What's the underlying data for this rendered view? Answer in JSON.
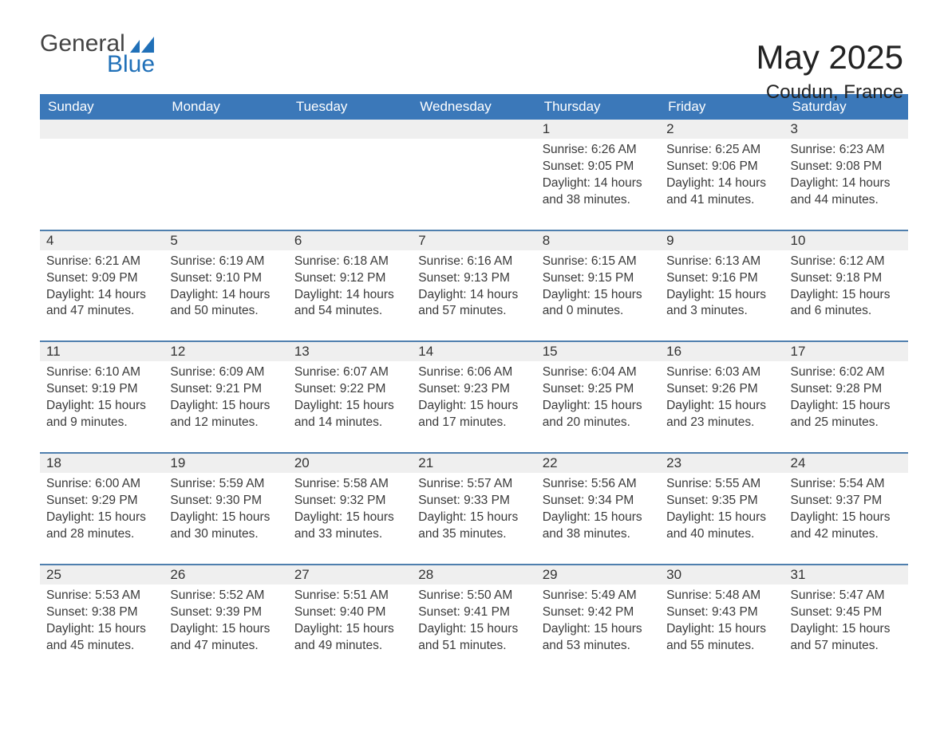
{
  "brand": {
    "word1": "General",
    "word2": "Blue",
    "logo_color": "#2070b8",
    "text_color": "#3a3a3a"
  },
  "title": {
    "main": "May 2025",
    "sub": "Coudun, France"
  },
  "colors": {
    "header_bg": "#3b78b9",
    "header_text": "#ffffff",
    "row_sep": "#efefef",
    "cell_border_top": "#4f7fae",
    "body_text": "#3a3a3a",
    "background": "#ffffff"
  },
  "columns": [
    "Sunday",
    "Monday",
    "Tuesday",
    "Wednesday",
    "Thursday",
    "Friday",
    "Saturday"
  ],
  "weeks": [
    {
      "days": [
        null,
        null,
        null,
        null,
        {
          "num": "1",
          "sunrise": "6:26 AM",
          "sunset": "9:05 PM",
          "daylight": "14 hours and 38 minutes."
        },
        {
          "num": "2",
          "sunrise": "6:25 AM",
          "sunset": "9:06 PM",
          "daylight": "14 hours and 41 minutes."
        },
        {
          "num": "3",
          "sunrise": "6:23 AM",
          "sunset": "9:08 PM",
          "daylight": "14 hours and 44 minutes."
        }
      ]
    },
    {
      "days": [
        {
          "num": "4",
          "sunrise": "6:21 AM",
          "sunset": "9:09 PM",
          "daylight": "14 hours and 47 minutes."
        },
        {
          "num": "5",
          "sunrise": "6:19 AM",
          "sunset": "9:10 PM",
          "daylight": "14 hours and 50 minutes."
        },
        {
          "num": "6",
          "sunrise": "6:18 AM",
          "sunset": "9:12 PM",
          "daylight": "14 hours and 54 minutes."
        },
        {
          "num": "7",
          "sunrise": "6:16 AM",
          "sunset": "9:13 PM",
          "daylight": "14 hours and 57 minutes."
        },
        {
          "num": "8",
          "sunrise": "6:15 AM",
          "sunset": "9:15 PM",
          "daylight": "15 hours and 0 minutes."
        },
        {
          "num": "9",
          "sunrise": "6:13 AM",
          "sunset": "9:16 PM",
          "daylight": "15 hours and 3 minutes."
        },
        {
          "num": "10",
          "sunrise": "6:12 AM",
          "sunset": "9:18 PM",
          "daylight": "15 hours and 6 minutes."
        }
      ]
    },
    {
      "days": [
        {
          "num": "11",
          "sunrise": "6:10 AM",
          "sunset": "9:19 PM",
          "daylight": "15 hours and 9 minutes."
        },
        {
          "num": "12",
          "sunrise": "6:09 AM",
          "sunset": "9:21 PM",
          "daylight": "15 hours and 12 minutes."
        },
        {
          "num": "13",
          "sunrise": "6:07 AM",
          "sunset": "9:22 PM",
          "daylight": "15 hours and 14 minutes."
        },
        {
          "num": "14",
          "sunrise": "6:06 AM",
          "sunset": "9:23 PM",
          "daylight": "15 hours and 17 minutes."
        },
        {
          "num": "15",
          "sunrise": "6:04 AM",
          "sunset": "9:25 PM",
          "daylight": "15 hours and 20 minutes."
        },
        {
          "num": "16",
          "sunrise": "6:03 AM",
          "sunset": "9:26 PM",
          "daylight": "15 hours and 23 minutes."
        },
        {
          "num": "17",
          "sunrise": "6:02 AM",
          "sunset": "9:28 PM",
          "daylight": "15 hours and 25 minutes."
        }
      ]
    },
    {
      "days": [
        {
          "num": "18",
          "sunrise": "6:00 AM",
          "sunset": "9:29 PM",
          "daylight": "15 hours and 28 minutes."
        },
        {
          "num": "19",
          "sunrise": "5:59 AM",
          "sunset": "9:30 PM",
          "daylight": "15 hours and 30 minutes."
        },
        {
          "num": "20",
          "sunrise": "5:58 AM",
          "sunset": "9:32 PM",
          "daylight": "15 hours and 33 minutes."
        },
        {
          "num": "21",
          "sunrise": "5:57 AM",
          "sunset": "9:33 PM",
          "daylight": "15 hours and 35 minutes."
        },
        {
          "num": "22",
          "sunrise": "5:56 AM",
          "sunset": "9:34 PM",
          "daylight": "15 hours and 38 minutes."
        },
        {
          "num": "23",
          "sunrise": "5:55 AM",
          "sunset": "9:35 PM",
          "daylight": "15 hours and 40 minutes."
        },
        {
          "num": "24",
          "sunrise": "5:54 AM",
          "sunset": "9:37 PM",
          "daylight": "15 hours and 42 minutes."
        }
      ]
    },
    {
      "days": [
        {
          "num": "25",
          "sunrise": "5:53 AM",
          "sunset": "9:38 PM",
          "daylight": "15 hours and 45 minutes."
        },
        {
          "num": "26",
          "sunrise": "5:52 AM",
          "sunset": "9:39 PM",
          "daylight": "15 hours and 47 minutes."
        },
        {
          "num": "27",
          "sunrise": "5:51 AM",
          "sunset": "9:40 PM",
          "daylight": "15 hours and 49 minutes."
        },
        {
          "num": "28",
          "sunrise": "5:50 AM",
          "sunset": "9:41 PM",
          "daylight": "15 hours and 51 minutes."
        },
        {
          "num": "29",
          "sunrise": "5:49 AM",
          "sunset": "9:42 PM",
          "daylight": "15 hours and 53 minutes."
        },
        {
          "num": "30",
          "sunrise": "5:48 AM",
          "sunset": "9:43 PM",
          "daylight": "15 hours and 55 minutes."
        },
        {
          "num": "31",
          "sunrise": "5:47 AM",
          "sunset": "9:45 PM",
          "daylight": "15 hours and 57 minutes."
        }
      ]
    }
  ],
  "labels": {
    "sunrise": "Sunrise: ",
    "sunset": "Sunset: ",
    "daylight": "Daylight: "
  }
}
